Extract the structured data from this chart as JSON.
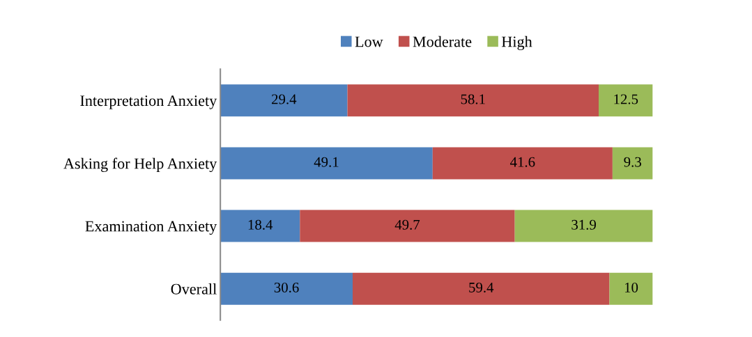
{
  "chart_data": {
    "type": "bar",
    "orientation": "horizontal",
    "stacked": true,
    "categories": [
      "Interpretation Anxiety",
      "Asking for Help Anxiety",
      "Examination Anxiety",
      "Overall"
    ],
    "series": [
      {
        "name": "Low",
        "color": "#4f81bd",
        "values": [
          29.4,
          49.1,
          18.4,
          30.6
        ]
      },
      {
        "name": "Moderate",
        "color": "#c0504d",
        "values": [
          58.1,
          41.6,
          49.7,
          59.4
        ]
      },
      {
        "name": "High",
        "color": "#9bbb59",
        "values": [
          12.5,
          9.3,
          31.9,
          10
        ]
      }
    ],
    "data_labels": true,
    "legend": "top",
    "grid": false,
    "tick_labels": "y"
  }
}
